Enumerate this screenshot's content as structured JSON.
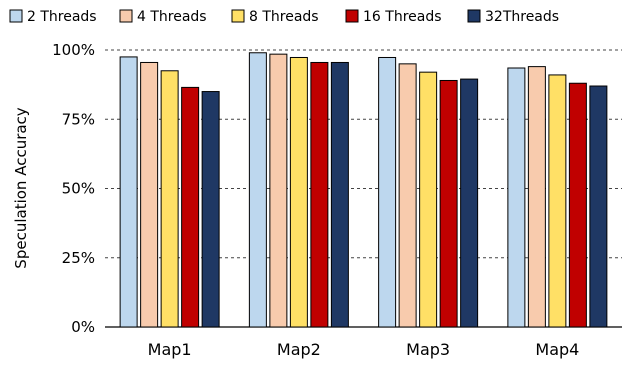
{
  "chart_data": {
    "type": "bar",
    "title": "",
    "xlabel": "",
    "ylabel": "Speculation Accuracy",
    "ylim": [
      0,
      100
    ],
    "y_ticks": [
      "0%",
      "25%",
      "50%",
      "75%",
      "100%"
    ],
    "grid": "horizontal dashed",
    "legend_position": "top",
    "categories": [
      "Map1",
      "Map2",
      "Map3",
      "Map4"
    ],
    "series": [
      {
        "name": "2 Threads",
        "color": "#bdd7ee",
        "values": [
          97.5,
          99,
          97.3,
          93.5
        ]
      },
      {
        "name": "4 Threads",
        "color": "#f8cbad",
        "values": [
          95.5,
          98.5,
          95,
          94
        ]
      },
      {
        "name": "8 Threads",
        "color": "#ffe066",
        "values": [
          92.5,
          97.3,
          92,
          91
        ]
      },
      {
        "name": "16 Threads",
        "color": "#c00000",
        "values": [
          86.5,
          95.5,
          89,
          88
        ]
      },
      {
        "name": "32Threads",
        "color": "#1f3864",
        "values": [
          85,
          95.5,
          89.5,
          87
        ]
      }
    ]
  }
}
